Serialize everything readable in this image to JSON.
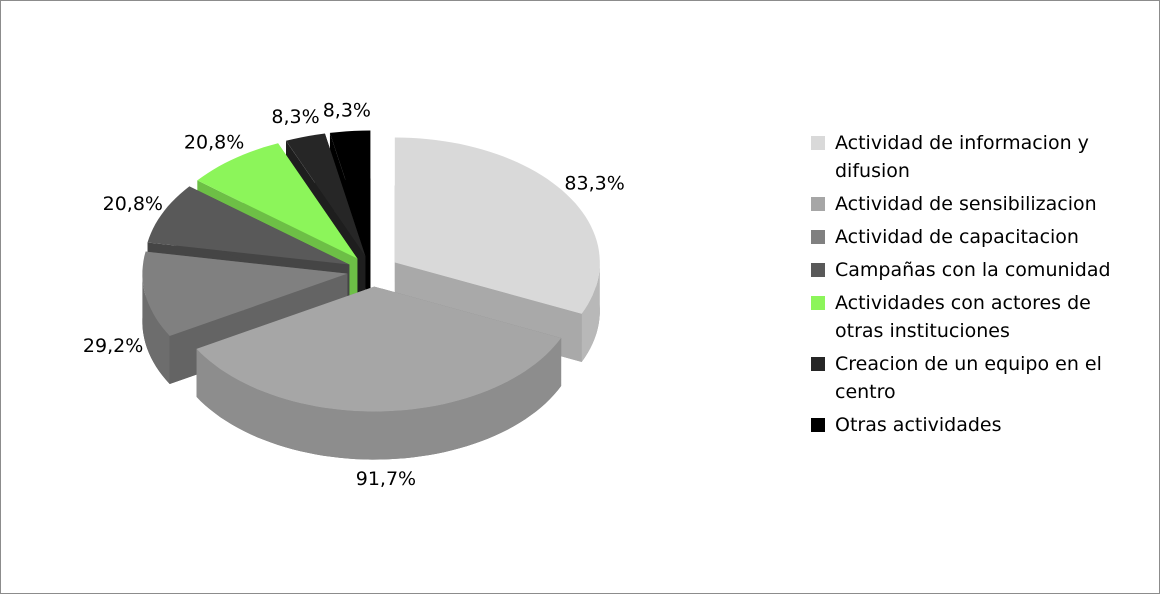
{
  "chart_data": {
    "type": "pie",
    "three_d": true,
    "categories": [
      "Actividad de informacion y difusion",
      "Actividad de sensibilizacion",
      "Actividad de capacitacion",
      "Campañas con la comunidad",
      "Actividades con actores de otras instituciones",
      "Creacion de un equipo en el centro",
      "Otras actividades"
    ],
    "values": [
      83.3,
      91.7,
      29.2,
      20.8,
      20.8,
      8.3,
      8.3
    ],
    "value_labels": [
      "83,3%",
      "91,7%",
      "29,2%",
      "20,8%",
      "20,8%",
      "8,3%",
      "8,3%"
    ],
    "colors": [
      "#d9d9d9",
      "#a6a6a6",
      "#808080",
      "#595959",
      "#8cf55a",
      "#262626",
      "#000000"
    ],
    "legend": "right"
  }
}
